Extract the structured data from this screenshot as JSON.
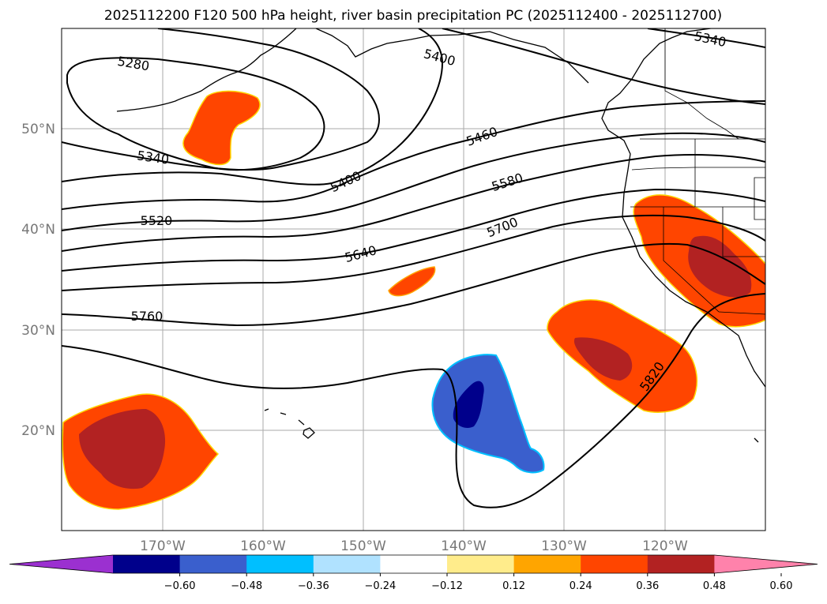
{
  "title": "2025112200 F120 500 hPa height, river basin precipitation PC (2025112400 - 2025112700)",
  "lat_labels": [
    "50°N",
    "40°N",
    "30°N",
    "20°N"
  ],
  "lon_labels": [
    "170°W",
    "160°W",
    "150°W",
    "140°W",
    "130°W",
    "120°W"
  ],
  "contour_labels": [
    "5280",
    "5340",
    "5340",
    "5400",
    "5400",
    "5460",
    "5520",
    "5580",
    "5640",
    "5700",
    "5760",
    "5820"
  ],
  "colorbar": {
    "colors": [
      "#9b30d0",
      "#00008b",
      "#3a5fcd",
      "#00bfff",
      "#b0e2ff",
      "#ffffff",
      "#ffec8b",
      "#ffa500",
      "#ff4500",
      "#b22222",
      "#ff82ab"
    ],
    "tick_labels": [
      "−0.60",
      "−0.48",
      "−0.36",
      "−0.24",
      "−0.12",
      "0.12",
      "0.24",
      "0.36",
      "0.48",
      "0.60"
    ]
  }
}
